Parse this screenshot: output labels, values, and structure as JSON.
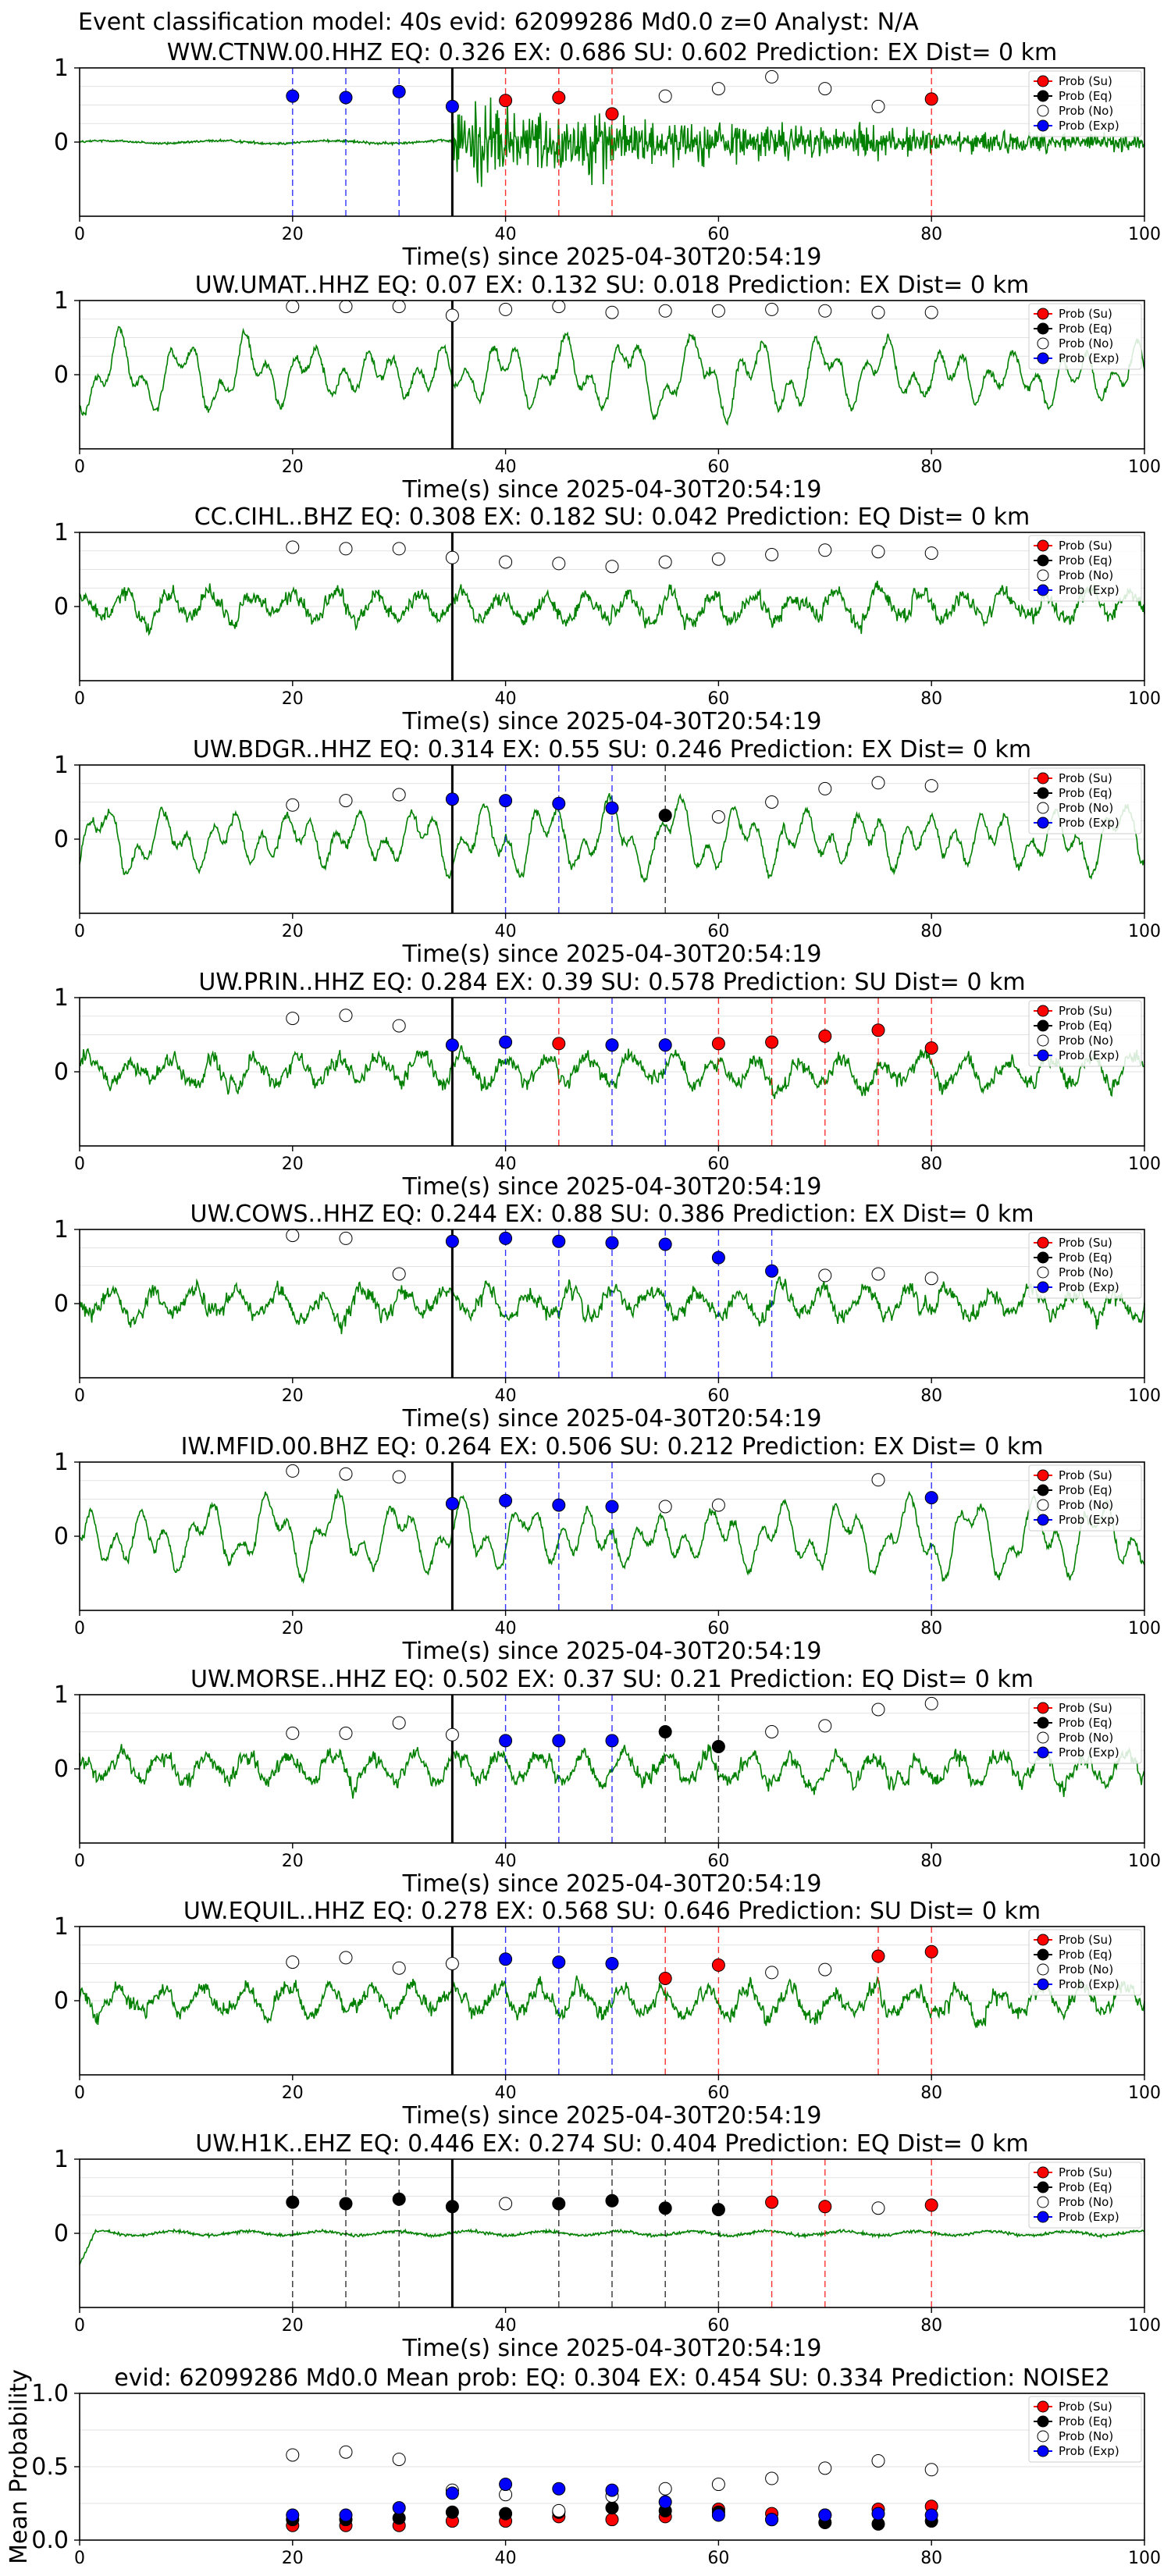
{
  "figure": {
    "suptitle": "Event classification model: 40s evid: 62099286 Md0.0 z=0 Analyst: N/A"
  },
  "chart_data": [
    {
      "type": "scatter",
      "panel": "station",
      "title": "WW.CTNW.00.HHZ   EQ: 0.326  EX: 0.686  SU: 0.602   Prediction: EX    Dist= 0 km",
      "xlabel": "Time(s) since 2025-04-30T20:54:19",
      "xlim": [
        0,
        100
      ],
      "ylim": [
        -1,
        1
      ],
      "xticks": [
        0,
        20,
        40,
        60,
        80,
        100
      ],
      "yticks": [
        0,
        1
      ],
      "grid": true,
      "legend": "top-right",
      "waveform": {
        "pattern": "noise-then-burst",
        "start_s": 35
      },
      "pick_time_s": 35,
      "series": [
        {
          "name": "Prob (Su)",
          "x": [
            40,
            45,
            50,
            80
          ],
          "y": [
            0.56,
            0.6,
            0.38,
            0.58
          ]
        },
        {
          "name": "Prob (Eq)",
          "x": [],
          "y": []
        },
        {
          "name": "Prob (No)",
          "x": [
            55,
            60,
            65,
            70,
            75
          ],
          "y": [
            0.62,
            0.72,
            0.88,
            0.72,
            0.48
          ]
        },
        {
          "name": "Prob (Exp)",
          "x": [
            20,
            25,
            30,
            35
          ],
          "y": [
            0.62,
            0.6,
            0.68,
            0.48
          ]
        }
      ]
    },
    {
      "type": "scatter",
      "panel": "station",
      "title": "UW.UMAT..HHZ   EQ: 0.07  EX: 0.132  SU: 0.018   Prediction: EX    Dist= 0 km",
      "xlabel": "Time(s) since 2025-04-30T20:54:19",
      "xlim": [
        0,
        100
      ],
      "ylim": [
        -1,
        1
      ],
      "xticks": [
        0,
        20,
        40,
        60,
        80,
        100
      ],
      "yticks": [
        0,
        1
      ],
      "grid": true,
      "legend": "top-right",
      "waveform": {
        "pattern": "long-period"
      },
      "pick_time_s": 35,
      "series": [
        {
          "name": "Prob (Su)",
          "x": [],
          "y": []
        },
        {
          "name": "Prob (Eq)",
          "x": [],
          "y": []
        },
        {
          "name": "Prob (No)",
          "x": [
            20,
            25,
            30,
            35,
            40,
            45,
            50,
            55,
            60,
            65,
            70,
            75,
            80
          ],
          "y": [
            0.92,
            0.92,
            0.92,
            0.8,
            0.88,
            0.92,
            0.84,
            0.86,
            0.86,
            0.88,
            0.86,
            0.84,
            0.84
          ]
        },
        {
          "name": "Prob (Exp)",
          "x": [],
          "y": []
        }
      ]
    },
    {
      "type": "scatter",
      "panel": "station",
      "title": "CC.CIHL..BHZ   EQ: 0.308  EX: 0.182  SU: 0.042   Prediction: EQ    Dist= 0 km",
      "xlabel": "Time(s) since 2025-04-30T20:54:19",
      "xlim": [
        0,
        100
      ],
      "ylim": [
        -1,
        1
      ],
      "xticks": [
        0,
        20,
        40,
        60,
        80,
        100
      ],
      "yticks": [
        0,
        1
      ],
      "grid": true,
      "legend": "top-right",
      "waveform": {
        "pattern": "noise"
      },
      "pick_time_s": 35,
      "series": [
        {
          "name": "Prob (Su)",
          "x": [],
          "y": []
        },
        {
          "name": "Prob (Eq)",
          "x": [],
          "y": []
        },
        {
          "name": "Prob (No)",
          "x": [
            20,
            25,
            30,
            35,
            40,
            45,
            50,
            55,
            60,
            65,
            70,
            75,
            80
          ],
          "y": [
            0.8,
            0.78,
            0.78,
            0.66,
            0.6,
            0.58,
            0.54,
            0.6,
            0.64,
            0.7,
            0.76,
            0.74,
            0.72
          ]
        },
        {
          "name": "Prob (Exp)",
          "x": [],
          "y": []
        }
      ]
    },
    {
      "type": "scatter",
      "panel": "station",
      "title": "UW.BDGR..HHZ   EQ: 0.314  EX: 0.55  SU: 0.246   Prediction: EX    Dist= 0 km",
      "xlabel": "Time(s) since 2025-04-30T20:54:19",
      "xlim": [
        0,
        100
      ],
      "ylim": [
        -1,
        1
      ],
      "xticks": [
        0,
        20,
        40,
        60,
        80,
        100
      ],
      "yticks": [
        0,
        1
      ],
      "grid": true,
      "legend": "top-right",
      "waveform": {
        "pattern": "long-period"
      },
      "pick_time_s": 35,
      "series": [
        {
          "name": "Prob (Su)",
          "x": [],
          "y": []
        },
        {
          "name": "Prob (Eq)",
          "x": [
            55
          ],
          "y": [
            0.32
          ]
        },
        {
          "name": "Prob (No)",
          "x": [
            20,
            25,
            30,
            60,
            65,
            70,
            75,
            80
          ],
          "y": [
            0.46,
            0.52,
            0.6,
            0.3,
            0.5,
            0.68,
            0.76,
            0.72
          ]
        },
        {
          "name": "Prob (Exp)",
          "x": [
            35,
            40,
            45,
            50
          ],
          "y": [
            0.54,
            0.52,
            0.48,
            0.42
          ]
        }
      ]
    },
    {
      "type": "scatter",
      "panel": "station",
      "title": "UW.PRIN..HHZ   EQ: 0.284  EX: 0.39  SU: 0.578   Prediction: SU    Dist= 0 km",
      "xlabel": "Time(s) since 2025-04-30T20:54:19",
      "xlim": [
        0,
        100
      ],
      "ylim": [
        -1,
        1
      ],
      "xticks": [
        0,
        20,
        40,
        60,
        80,
        100
      ],
      "yticks": [
        0,
        1
      ],
      "grid": true,
      "legend": "top-right",
      "waveform": {
        "pattern": "noise"
      },
      "pick_time_s": 35,
      "series": [
        {
          "name": "Prob (Su)",
          "x": [
            45,
            60,
            65,
            70,
            75,
            80
          ],
          "y": [
            0.38,
            0.38,
            0.4,
            0.48,
            0.56,
            0.32
          ]
        },
        {
          "name": "Prob (Eq)",
          "x": [],
          "y": []
        },
        {
          "name": "Prob (No)",
          "x": [
            20,
            25,
            30
          ],
          "y": [
            0.72,
            0.76,
            0.62
          ]
        },
        {
          "name": "Prob (Exp)",
          "x": [
            35,
            40,
            50,
            55
          ],
          "y": [
            0.36,
            0.4,
            0.36,
            0.36
          ]
        }
      ]
    },
    {
      "type": "scatter",
      "panel": "station",
      "title": "UW.COWS..HHZ   EQ: 0.244  EX: 0.88  SU: 0.386   Prediction: EX    Dist= 0 km",
      "xlabel": "Time(s) since 2025-04-30T20:54:19",
      "xlim": [
        0,
        100
      ],
      "ylim": [
        -1,
        1
      ],
      "xticks": [
        0,
        20,
        40,
        60,
        80,
        100
      ],
      "yticks": [
        0,
        1
      ],
      "grid": true,
      "legend": "top-right",
      "waveform": {
        "pattern": "noise"
      },
      "pick_time_s": 35,
      "series": [
        {
          "name": "Prob (Su)",
          "x": [],
          "y": []
        },
        {
          "name": "Prob (Eq)",
          "x": [],
          "y": []
        },
        {
          "name": "Prob (No)",
          "x": [
            20,
            25,
            30,
            70,
            75,
            80
          ],
          "y": [
            0.92,
            0.88,
            0.4,
            0.38,
            0.4,
            0.34
          ]
        },
        {
          "name": "Prob (Exp)",
          "x": [
            35,
            40,
            45,
            50,
            55,
            60,
            65
          ],
          "y": [
            0.84,
            0.88,
            0.84,
            0.82,
            0.8,
            0.62,
            0.44
          ]
        }
      ]
    },
    {
      "type": "scatter",
      "panel": "station",
      "title": "IW.MFID.00.BHZ   EQ: 0.264  EX: 0.506  SU: 0.212   Prediction: EX    Dist= 0 km",
      "xlabel": "Time(s) since 2025-04-30T20:54:19",
      "xlim": [
        0,
        100
      ],
      "ylim": [
        -1,
        1
      ],
      "xticks": [
        0,
        20,
        40,
        60,
        80,
        100
      ],
      "yticks": [
        0,
        1
      ],
      "grid": true,
      "legend": "top-right",
      "waveform": {
        "pattern": "long-period"
      },
      "pick_time_s": 35,
      "series": [
        {
          "name": "Prob (Su)",
          "x": [],
          "y": []
        },
        {
          "name": "Prob (Eq)",
          "x": [],
          "y": []
        },
        {
          "name": "Prob (No)",
          "x": [
            20,
            25,
            30,
            55,
            60,
            75
          ],
          "y": [
            0.88,
            0.84,
            0.8,
            0.4,
            0.42,
            0.76
          ]
        },
        {
          "name": "Prob (Exp)",
          "x": [
            35,
            40,
            45,
            50,
            80
          ],
          "y": [
            0.44,
            0.48,
            0.42,
            0.4,
            0.52
          ]
        }
      ]
    },
    {
      "type": "scatter",
      "panel": "station",
      "title": "UW.MORSE..HHZ   EQ: 0.502  EX: 0.37  SU: 0.21   Prediction: EQ    Dist= 0 km",
      "xlabel": "Time(s) since 2025-04-30T20:54:19",
      "xlim": [
        0,
        100
      ],
      "ylim": [
        -1,
        1
      ],
      "xticks": [
        0,
        20,
        40,
        60,
        80,
        100
      ],
      "yticks": [
        0,
        1
      ],
      "grid": true,
      "legend": "top-right",
      "waveform": {
        "pattern": "noise"
      },
      "pick_time_s": 35,
      "series": [
        {
          "name": "Prob (Su)",
          "x": [],
          "y": []
        },
        {
          "name": "Prob (Eq)",
          "x": [
            55,
            60
          ],
          "y": [
            0.5,
            0.3
          ]
        },
        {
          "name": "Prob (No)",
          "x": [
            20,
            25,
            30,
            35,
            65,
            70,
            75,
            80
          ],
          "y": [
            0.48,
            0.48,
            0.62,
            0.46,
            0.5,
            0.58,
            0.8,
            0.88
          ]
        },
        {
          "name": "Prob (Exp)",
          "x": [
            40,
            45,
            50
          ],
          "y": [
            0.38,
            0.38,
            0.38
          ]
        }
      ]
    },
    {
      "type": "scatter",
      "panel": "station",
      "title": "UW.EQUIL..HHZ   EQ: 0.278  EX: 0.568  SU: 0.646   Prediction: SU    Dist= 0 km",
      "xlabel": "Time(s) since 2025-04-30T20:54:19",
      "xlim": [
        0,
        100
      ],
      "ylim": [
        -1,
        1
      ],
      "xticks": [
        0,
        20,
        40,
        60,
        80,
        100
      ],
      "yticks": [
        0,
        1
      ],
      "grid": true,
      "legend": "top-right",
      "waveform": {
        "pattern": "noise"
      },
      "pick_time_s": 35,
      "series": [
        {
          "name": "Prob (Su)",
          "x": [
            55,
            60,
            75,
            80
          ],
          "y": [
            0.3,
            0.48,
            0.6,
            0.66
          ]
        },
        {
          "name": "Prob (Eq)",
          "x": [],
          "y": []
        },
        {
          "name": "Prob (No)",
          "x": [
            20,
            25,
            30,
            35,
            65,
            70
          ],
          "y": [
            0.52,
            0.58,
            0.44,
            0.5,
            0.38,
            0.42
          ]
        },
        {
          "name": "Prob (Exp)",
          "x": [
            40,
            45,
            50
          ],
          "y": [
            0.56,
            0.52,
            0.5
          ]
        }
      ]
    },
    {
      "type": "scatter",
      "panel": "station",
      "title": "UW.H1K..EHZ   EQ: 0.446  EX: 0.274  SU: 0.404   Prediction: EQ    Dist= 0 km",
      "xlabel": "Time(s) since 2025-04-30T20:54:19",
      "xlim": [
        0,
        100
      ],
      "ylim": [
        -1,
        1
      ],
      "xticks": [
        0,
        20,
        40,
        60,
        80,
        100
      ],
      "yticks": [
        0,
        1
      ],
      "grid": true,
      "legend": "top-right",
      "waveform": {
        "pattern": "quiet"
      },
      "pick_time_s": 35,
      "series": [
        {
          "name": "Prob (Su)",
          "x": [
            65,
            70,
            80
          ],
          "y": [
            0.42,
            0.36,
            0.38
          ]
        },
        {
          "name": "Prob (Eq)",
          "x": [
            20,
            25,
            30,
            35,
            45,
            50,
            55,
            60
          ],
          "y": [
            0.42,
            0.4,
            0.46,
            0.36,
            0.4,
            0.44,
            0.34,
            0.32
          ]
        },
        {
          "name": "Prob (No)",
          "x": [
            40,
            75
          ],
          "y": [
            0.4,
            0.34
          ]
        },
        {
          "name": "Prob (Exp)",
          "x": [],
          "y": []
        }
      ]
    },
    {
      "type": "scatter",
      "panel": "mean",
      "title": "evid: 62099286   Md0.0   Mean prob:   EQ: 0.304   EX: 0.454   SU: 0.334   Prediction: NOISE2",
      "ylabel": "Mean Probability",
      "xlim": [
        0,
        100
      ],
      "ylim": [
        0,
        1
      ],
      "xticks": [
        0,
        20,
        40,
        60,
        80,
        100
      ],
      "yticks": [
        0.0,
        0.5,
        1.0
      ],
      "grid": true,
      "legend": "top-right",
      "series": [
        {
          "name": "Prob (Su)",
          "x": [
            20,
            25,
            30,
            35,
            40,
            45,
            50,
            55,
            60,
            65,
            70,
            75,
            80
          ],
          "y": [
            0.1,
            0.1,
            0.1,
            0.13,
            0.13,
            0.16,
            0.14,
            0.16,
            0.21,
            0.18,
            0.17,
            0.21,
            0.23
          ]
        },
        {
          "name": "Prob (Eq)",
          "x": [
            20,
            25,
            30,
            35,
            40,
            45,
            50,
            55,
            60,
            65,
            70,
            75,
            80
          ],
          "y": [
            0.14,
            0.14,
            0.15,
            0.19,
            0.18,
            0.19,
            0.22,
            0.2,
            0.19,
            0.14,
            0.12,
            0.11,
            0.13
          ]
        },
        {
          "name": "Prob (No)",
          "x": [
            20,
            25,
            30,
            35,
            40,
            45,
            50,
            55,
            60,
            65,
            70,
            75,
            80
          ],
          "y": [
            0.58,
            0.6,
            0.55,
            0.34,
            0.31,
            0.2,
            0.3,
            0.35,
            0.38,
            0.42,
            0.49,
            0.54,
            0.48
          ]
        },
        {
          "name": "Prob (Exp)",
          "x": [
            20,
            25,
            30,
            35,
            40,
            45,
            50,
            55,
            60,
            65,
            70,
            75,
            80
          ],
          "y": [
            0.17,
            0.17,
            0.22,
            0.32,
            0.38,
            0.35,
            0.34,
            0.26,
            0.17,
            0.14,
            0.17,
            0.18,
            0.17
          ]
        }
      ]
    }
  ],
  "colors": {
    "waveform": "#008000",
    "Prob (Su)": "#ff0000",
    "Prob (Eq)": "#000000",
    "Prob (No)": "#ffffff",
    "Prob (Exp)": "#0000ff",
    "pick_line": "#000000",
    "grid": "#d9d9d9"
  }
}
